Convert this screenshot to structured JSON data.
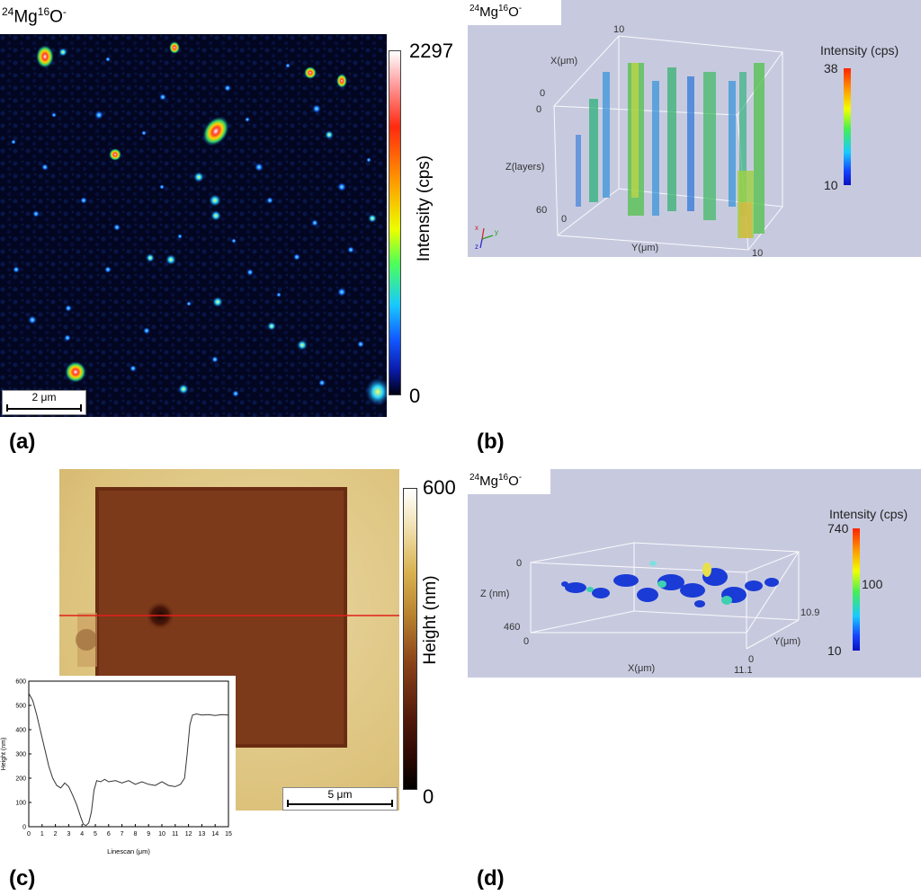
{
  "figure": {
    "species_main": "Mg",
    "species_mass_mg": "24",
    "species_o": "O",
    "species_mass_o": "16",
    "species_charge": "-"
  },
  "panel_a": {
    "letter": "(a)",
    "scalebar": "2 μm",
    "colorbar": {
      "max": "2297",
      "min": "0",
      "title": "Intensity (cps)"
    }
  },
  "panel_b": {
    "letter": "(b)",
    "colorbar": {
      "title": "Intensity (cps)",
      "max": "38",
      "min": "10"
    },
    "axes": {
      "x_label": "X(μm)",
      "x_min": "0",
      "x_max": "10",
      "z_label": "Z(layers)",
      "z_min": "0",
      "z_max": "60",
      "y_label": "Y(μm)",
      "y_min": "0",
      "y_max": "10"
    },
    "triad": {
      "x": "x",
      "y": "y",
      "z": "z"
    }
  },
  "panel_c": {
    "letter": "(c)",
    "scalebar": "5 μm",
    "colorbar": {
      "max": "600",
      "min": "0",
      "title": "Height (nm)"
    }
  },
  "panel_d": {
    "letter": "(d)",
    "colorbar": {
      "title": "Intensity (cps)",
      "max": "740",
      "mid": "100",
      "min": "10"
    },
    "axes": {
      "z_label": "Z (nm)",
      "z_min": "0",
      "z_max": "460",
      "x_label": "X(μm)",
      "x_min": "0",
      "x_max": "11.1",
      "y_label": "Y(μm)",
      "y_min": "0",
      "y_max": "10.9"
    }
  },
  "chart_data": {
    "type": "line",
    "title": "",
    "xlabel": "Linescan (μm)",
    "ylabel": "Height (nm)",
    "xlim": [
      0,
      15
    ],
    "ylim": [
      0,
      600
    ],
    "xticks": [
      "0",
      "1",
      "2",
      "3",
      "4",
      "5",
      "6",
      "7",
      "8",
      "9",
      "10",
      "11",
      "12",
      "13",
      "14",
      "15"
    ],
    "yticks": [
      "0",
      "100",
      "200",
      "300",
      "400",
      "500",
      "600"
    ],
    "series": [
      {
        "name": "height",
        "x": [
          0,
          0.3,
          0.6,
          0.9,
          1.2,
          1.5,
          1.8,
          2.1,
          2.4,
          2.7,
          3.0,
          3.3,
          3.6,
          3.9,
          4.1,
          4.3,
          4.5,
          4.7,
          4.9,
          5.1,
          5.4,
          5.7,
          6.0,
          6.5,
          7.0,
          7.5,
          8.0,
          8.5,
          9.0,
          9.5,
          10.0,
          10.5,
          11.0,
          11.4,
          11.7,
          11.9,
          12.1,
          12.3,
          12.6,
          13.0,
          13.5,
          14.0,
          14.5,
          15.0
        ],
        "y": [
          550,
          520,
          460,
          390,
          320,
          250,
          200,
          170,
          160,
          180,
          165,
          130,
          90,
          40,
          10,
          5,
          15,
          60,
          150,
          190,
          185,
          195,
          185,
          190,
          180,
          190,
          175,
          185,
          175,
          170,
          185,
          170,
          165,
          175,
          200,
          300,
          420,
          460,
          465,
          460,
          462,
          458,
          462,
          460
        ]
      }
    ]
  }
}
